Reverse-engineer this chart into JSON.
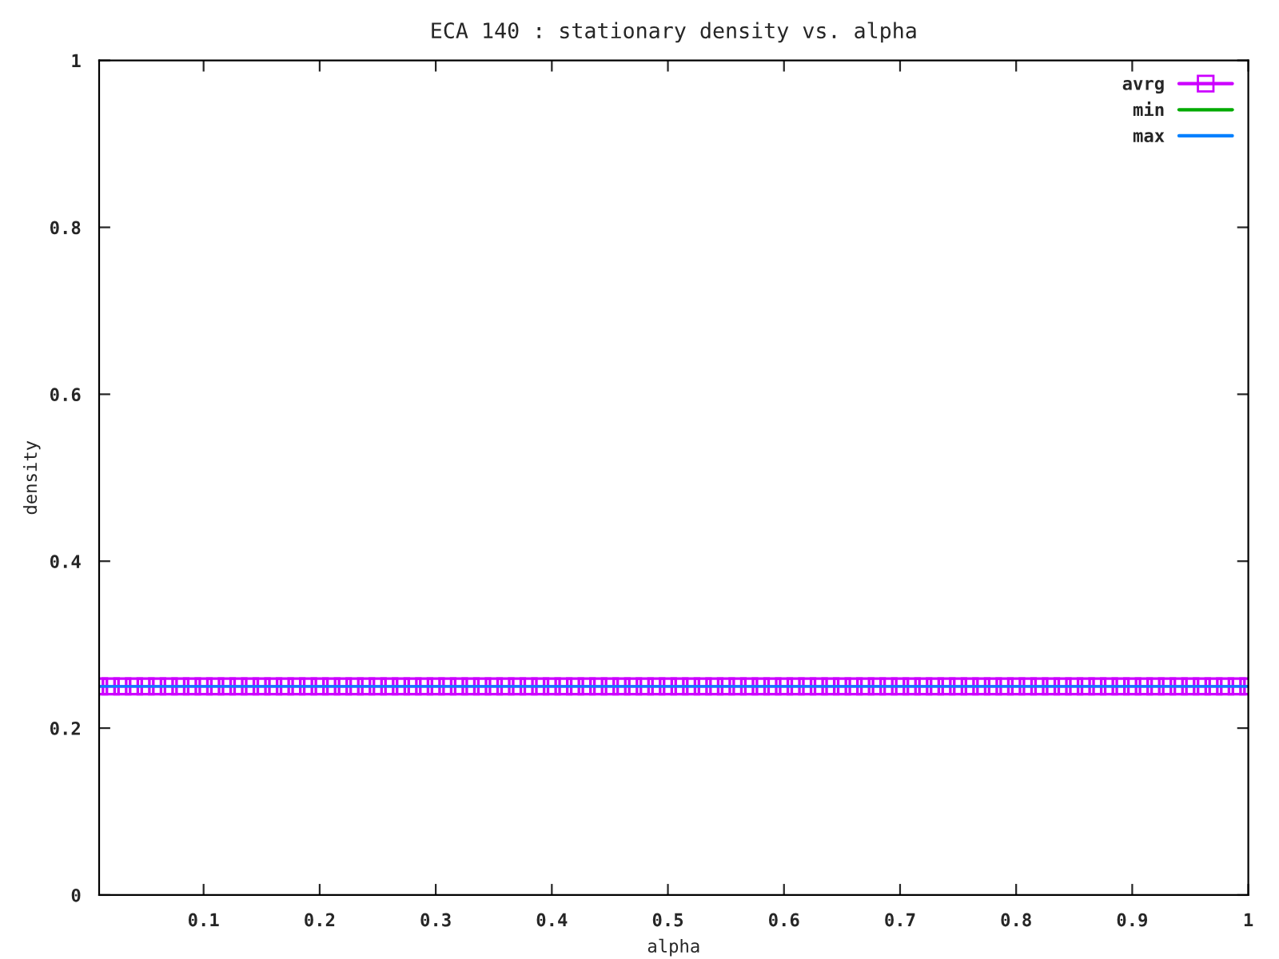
{
  "chart_data": {
    "type": "line",
    "title": "ECA 140 : stationary density vs. alpha",
    "xlabel": "alpha",
    "ylabel": "density",
    "x": [
      0.01,
      0.02,
      0.03,
      0.04,
      0.05,
      0.06,
      0.07,
      0.08,
      0.09,
      0.1,
      0.11,
      0.12,
      0.13,
      0.14,
      0.15,
      0.16,
      0.17,
      0.18,
      0.19,
      0.2,
      0.21,
      0.22,
      0.23,
      0.24,
      0.25,
      0.26,
      0.27,
      0.28,
      0.29,
      0.3,
      0.31,
      0.32,
      0.33,
      0.34,
      0.35,
      0.36,
      0.37,
      0.38,
      0.39,
      0.4,
      0.41,
      0.42,
      0.43,
      0.44,
      0.45,
      0.46,
      0.47,
      0.48,
      0.49,
      0.5,
      0.51,
      0.52,
      0.53,
      0.54,
      0.55,
      0.56,
      0.57,
      0.58,
      0.59,
      0.6,
      0.61,
      0.62,
      0.63,
      0.64,
      0.65,
      0.66,
      0.67,
      0.68,
      0.69,
      0.7,
      0.71,
      0.72,
      0.73,
      0.74,
      0.75,
      0.76,
      0.77,
      0.78,
      0.79,
      0.8,
      0.81,
      0.82,
      0.83,
      0.84,
      0.85,
      0.86,
      0.87,
      0.88,
      0.89,
      0.9,
      0.91,
      0.92,
      0.93,
      0.94,
      0.95,
      0.96,
      0.97,
      0.98,
      0.99,
      1.0
    ],
    "series": [
      {
        "name": "avrg",
        "color": "#cc00ff",
        "marker": "square",
        "values": [
          0.25,
          0.25,
          0.25,
          0.25,
          0.25,
          0.25,
          0.25,
          0.25,
          0.25,
          0.25,
          0.25,
          0.25,
          0.25,
          0.25,
          0.25,
          0.25,
          0.25,
          0.25,
          0.25,
          0.25,
          0.25,
          0.25,
          0.25,
          0.25,
          0.25,
          0.25,
          0.25,
          0.25,
          0.25,
          0.25,
          0.25,
          0.25,
          0.25,
          0.25,
          0.25,
          0.25,
          0.25,
          0.25,
          0.25,
          0.25,
          0.25,
          0.25,
          0.25,
          0.25,
          0.25,
          0.25,
          0.25,
          0.25,
          0.25,
          0.25,
          0.25,
          0.25,
          0.25,
          0.25,
          0.25,
          0.25,
          0.25,
          0.25,
          0.25,
          0.25,
          0.25,
          0.25,
          0.25,
          0.25,
          0.25,
          0.25,
          0.25,
          0.25,
          0.25,
          0.25,
          0.25,
          0.25,
          0.25,
          0.25,
          0.25,
          0.25,
          0.25,
          0.25,
          0.25,
          0.25,
          0.25,
          0.25,
          0.25,
          0.25,
          0.25,
          0.25,
          0.25,
          0.25,
          0.25,
          0.25,
          0.25,
          0.25,
          0.25,
          0.25,
          0.25,
          0.25,
          0.25,
          0.25,
          0.25,
          0.25
        ]
      },
      {
        "name": "min",
        "color": "#00aa00",
        "values": [
          null,
          null,
          null,
          null,
          null,
          null,
          null,
          null,
          null,
          null,
          null,
          null,
          null,
          null,
          null,
          null,
          null,
          null,
          null,
          null,
          null,
          null,
          null,
          null,
          null,
          null,
          null,
          null,
          null,
          null,
          null,
          null,
          null,
          null,
          null,
          null,
          null,
          null,
          null,
          null,
          null,
          null,
          null,
          null,
          null,
          null,
          null,
          null,
          null,
          null,
          null,
          null,
          null,
          null,
          null,
          null,
          null,
          null,
          null,
          null,
          null,
          null,
          null,
          null,
          null,
          null,
          null,
          null,
          null,
          null,
          null,
          null,
          null,
          null,
          null,
          null,
          null,
          null,
          null,
          null,
          null,
          null,
          null,
          null,
          null,
          null,
          null,
          null,
          null,
          null,
          null,
          null,
          null,
          null,
          null,
          null,
          null,
          null,
          null,
          null
        ]
      },
      {
        "name": "max",
        "color": "#0080ff",
        "values": [
          0.25,
          0.25,
          0.25,
          0.25,
          0.25,
          0.25,
          0.25,
          0.25,
          0.25,
          0.25,
          0.25,
          0.25,
          0.25,
          0.25,
          0.25,
          0.25,
          0.25,
          0.25,
          0.25,
          0.25,
          0.25,
          0.25,
          0.25,
          0.25,
          0.25,
          0.25,
          0.25,
          0.25,
          0.25,
          0.25,
          0.25,
          0.25,
          0.25,
          0.25,
          0.25,
          0.25,
          0.25,
          0.25,
          0.25,
          0.25,
          0.25,
          0.25,
          0.25,
          0.25,
          0.25,
          0.25,
          0.25,
          0.25,
          0.25,
          0.25,
          0.25,
          0.25,
          0.25,
          0.25,
          0.25,
          0.25,
          0.25,
          0.25,
          0.25,
          0.25,
          0.25,
          0.25,
          0.25,
          0.25,
          0.25,
          0.25,
          0.25,
          0.25,
          0.25,
          0.25,
          0.25,
          0.25,
          0.25,
          0.25,
          0.25,
          0.25,
          0.25,
          0.25,
          0.25,
          0.25,
          0.25,
          0.25,
          0.25,
          0.25,
          0.25,
          0.25,
          0.25,
          0.25,
          0.25,
          0.25,
          0.25,
          0.25,
          0.25,
          0.25,
          0.25,
          0.25,
          0.25,
          0.25,
          0.25,
          0.25
        ]
      }
    ],
    "xlim": [
      0.01,
      1
    ],
    "xticks": [
      {
        "value": 0.1,
        "label": "0.1"
      },
      {
        "value": 0.2,
        "label": "0.2"
      },
      {
        "value": 0.3,
        "label": "0.3"
      },
      {
        "value": 0.4,
        "label": "0.4"
      },
      {
        "value": 0.5,
        "label": "0.5"
      },
      {
        "value": 0.6,
        "label": "0.6"
      },
      {
        "value": 0.7,
        "label": "0.7"
      },
      {
        "value": 0.8,
        "label": "0.8"
      },
      {
        "value": 0.9,
        "label": "0.9"
      },
      {
        "value": 1,
        "label": "1"
      }
    ],
    "ylim": [
      0,
      1
    ],
    "yticks": [
      {
        "value": 0,
        "label": "0"
      },
      {
        "value": 0.2,
        "label": "0.2"
      },
      {
        "value": 0.4,
        "label": "0.4"
      },
      {
        "value": 0.6,
        "label": "0.6"
      },
      {
        "value": 0.8,
        "label": "0.8"
      },
      {
        "value": 1,
        "label": "1"
      }
    ],
    "grid": false,
    "legend": "top right",
    "line_style": "solid"
  }
}
